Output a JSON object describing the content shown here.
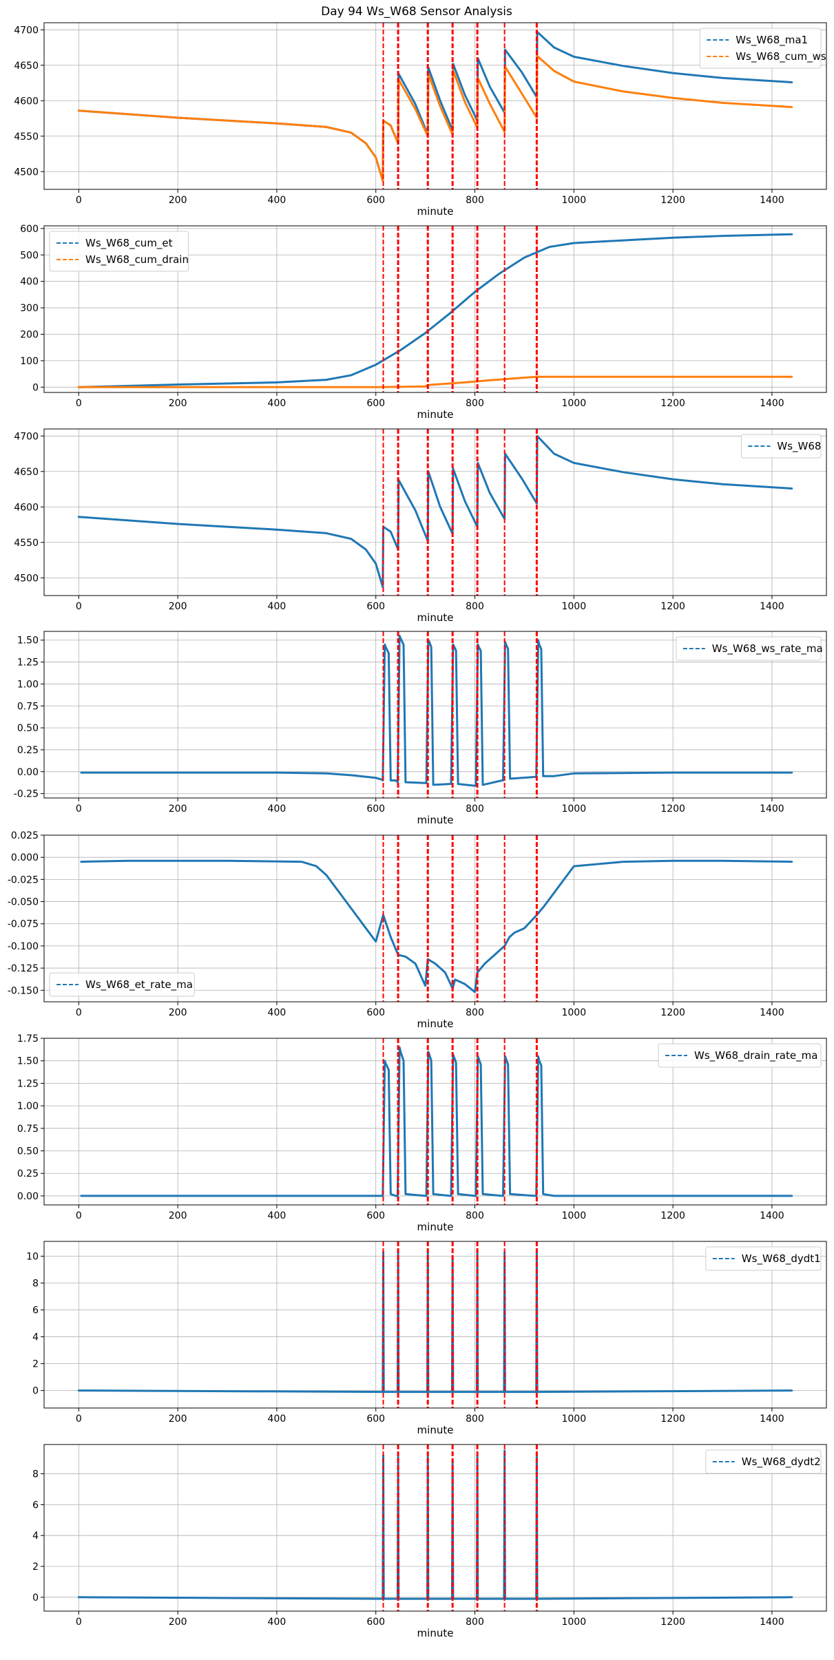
{
  "chart_data": {
    "title": "Day 94 Ws_W68 Sensor Analysis",
    "xlabel": "minute",
    "xlim": [
      -70,
      1510
    ],
    "xticks": [
      0,
      200,
      400,
      600,
      800,
      1000,
      1200,
      1400
    ],
    "colors": {
      "blue": "#1f77b4",
      "orange": "#ff7f0e",
      "event": "#ff0000",
      "grid": "#b0b0b0"
    },
    "event_lines": [
      {
        "minute": 615,
        "weight": "thin"
      },
      {
        "minute": 645,
        "weight": "thick"
      },
      {
        "minute": 705,
        "weight": "thick"
      },
      {
        "minute": 755,
        "weight": "thick"
      },
      {
        "minute": 805,
        "weight": "thick"
      },
      {
        "minute": 860,
        "weight": "thin"
      },
      {
        "minute": 925,
        "weight": "thick"
      }
    ],
    "panels": [
      {
        "type": "line",
        "ylim": [
          4475,
          4710
        ],
        "yticks": [
          4500,
          4550,
          4600,
          4650,
          4700
        ],
        "ytick_labels": [
          "4500",
          "4550",
          "4600",
          "4650",
          "4700"
        ],
        "legend": "top-right",
        "series": [
          {
            "name": "Ws_W68_ma1",
            "color": "blue",
            "x": [
              0,
              200,
              400,
              500,
              550,
              580,
              600,
              614,
              615,
              630,
              645,
              646,
              680,
              705,
              706,
              730,
              755,
              756,
              780,
              805,
              806,
              830,
              860,
              861,
              895,
              925,
              926,
              960,
              1000,
              1100,
              1200,
              1300,
              1440
            ],
            "y": [
              4586,
              4576,
              4568,
              4563,
              4555,
              4540,
              4520,
              4487,
              4572,
              4565,
              4540,
              4638,
              4595,
              4552,
              4647,
              4600,
              4558,
              4652,
              4608,
              4572,
              4660,
              4620,
              4583,
              4672,
              4640,
              4605,
              4697,
              4675,
              4662,
              4649,
              4639,
              4632,
              4626
            ]
          },
          {
            "name": "Ws_W68_cum_ws",
            "color": "orange",
            "x": [
              0,
              200,
              400,
              500,
              550,
              580,
              600,
              614,
              615,
              630,
              645,
              646,
              680,
              705,
              706,
              730,
              755,
              756,
              780,
              805,
              806,
              830,
              860,
              861,
              895,
              925,
              926,
              960,
              1000,
              1100,
              1200,
              1300,
              1440
            ],
            "y": [
              4586,
              4576,
              4568,
              4563,
              4555,
              4540,
              4520,
              4487,
              4572,
              4565,
              4540,
              4630,
              4588,
              4550,
              4638,
              4592,
              4552,
              4643,
              4598,
              4562,
              4632,
              4596,
              4556,
              4648,
              4610,
              4576,
              4663,
              4642,
              4627,
              4613,
              4604,
              4597,
              4591
            ]
          }
        ]
      },
      {
        "type": "line",
        "ylim": [
          -20,
          610
        ],
        "yticks": [
          0,
          100,
          200,
          300,
          400,
          500,
          600
        ],
        "ytick_labels": [
          "0",
          "100",
          "200",
          "300",
          "400",
          "500",
          "600"
        ],
        "legend": "top-left",
        "series": [
          {
            "name": "Ws_W68_cum_et",
            "color": "blue",
            "x": [
              0,
              200,
              400,
              500,
              550,
              600,
              650,
              700,
              750,
              800,
              850,
              900,
              950,
              1000,
              1100,
              1200,
              1300,
              1440
            ],
            "y": [
              0,
              10,
              18,
              28,
              45,
              85,
              140,
              205,
              280,
              360,
              430,
              490,
              530,
              545,
              555,
              565,
              572,
              578
            ]
          },
          {
            "name": "Ws_W68_cum_drain",
            "color": "orange",
            "x": [
              0,
              600,
              645,
              700,
              705,
              755,
              780,
              805,
              830,
              860,
              900,
              925,
              1000,
              1440
            ],
            "y": [
              0,
              0,
              1,
              3,
              8,
              15,
              18,
              22,
              26,
              30,
              36,
              39,
              39,
              39
            ]
          }
        ]
      },
      {
        "type": "line",
        "ylim": [
          4475,
          4710
        ],
        "yticks": [
          4500,
          4550,
          4600,
          4650,
          4700
        ],
        "ytick_labels": [
          "4500",
          "4550",
          "4600",
          "4650",
          "4700"
        ],
        "legend": "top-right",
        "series": [
          {
            "name": "Ws_W68",
            "color": "blue",
            "x": [
              0,
              200,
              400,
              500,
              550,
              580,
              600,
              614,
              615,
              630,
              645,
              646,
              680,
              705,
              706,
              730,
              755,
              756,
              780,
              805,
              806,
              830,
              860,
              861,
              895,
              925,
              926,
              960,
              1000,
              1100,
              1200,
              1300,
              1440
            ],
            "y": [
              4586,
              4576,
              4568,
              4563,
              4555,
              4540,
              4520,
              4487,
              4572,
              4565,
              4540,
              4638,
              4595,
              4552,
              4650,
              4600,
              4562,
              4654,
              4608,
              4572,
              4662,
              4620,
              4583,
              4675,
              4640,
              4605,
              4700,
              4675,
              4662,
              4649,
              4639,
              4632,
              4626
            ]
          }
        ]
      },
      {
        "type": "line",
        "ylim": [
          -0.3,
          1.6
        ],
        "yticks": [
          -0.25,
          0,
          0.25,
          0.5,
          0.75,
          1.0,
          1.25,
          1.5
        ],
        "ytick_labels": [
          "-0.25",
          "0.00",
          "0.25",
          "0.50",
          "0.75",
          "1.00",
          "1.25",
          "1.50"
        ],
        "legend": "top-right",
        "series": [
          {
            "name": "Ws_W68_ws_rate_ma",
            "color": "blue",
            "x": [
              5,
              400,
              500,
              550,
              600,
              612,
              614,
              618,
              620,
              626,
              630,
              640,
              644,
              648,
              650,
              656,
              660,
              700,
              702,
              706,
              708,
              712,
              716,
              750,
              752,
              756,
              758,
              762,
              766,
              800,
              802,
              806,
              808,
              812,
              816,
              855,
              857,
              861,
              863,
              867,
              871,
              922,
              924,
              928,
              930,
              934,
              938,
              960,
              1000,
              1200,
              1440
            ],
            "y": [
              -0.01,
              -0.01,
              -0.02,
              -0.04,
              -0.07,
              -0.09,
              -0.1,
              1.45,
              1.42,
              1.35,
              -0.1,
              -0.1,
              -0.12,
              1.55,
              1.52,
              1.45,
              -0.12,
              -0.13,
              -0.13,
              1.5,
              1.48,
              1.42,
              -0.15,
              -0.14,
              -0.14,
              1.45,
              1.43,
              1.38,
              -0.14,
              -0.16,
              -0.16,
              1.45,
              1.42,
              1.38,
              -0.15,
              -0.1,
              -0.1,
              1.48,
              1.45,
              1.4,
              -0.08,
              -0.06,
              -0.06,
              1.5,
              1.45,
              1.4,
              -0.05,
              -0.05,
              -0.02,
              -0.01,
              -0.01
            ]
          }
        ]
      },
      {
        "type": "line",
        "ylim": [
          -0.163,
          0.025
        ],
        "yticks": [
          -0.15,
          -0.125,
          -0.1,
          -0.075,
          -0.05,
          -0.025,
          0,
          0.025
        ],
        "ytick_labels": [
          "-0.150",
          "-0.125",
          "-0.100",
          "-0.075",
          "-0.050",
          "-0.025",
          "0.000",
          "0.025"
        ],
        "legend": "bottom-left",
        "series": [
          {
            "name": "Ws_W68_et_rate_ma",
            "color": "blue",
            "x": [
              5,
              100,
              200,
              300,
              450,
              480,
              500,
              520,
              540,
              560,
              580,
              600,
              615,
              630,
              645,
              660,
              680,
              700,
              705,
              720,
              740,
              755,
              760,
              780,
              800,
              805,
              820,
              840,
              860,
              870,
              880,
              900,
              925,
              940,
              960,
              980,
              1000,
              1100,
              1200,
              1300,
              1440
            ],
            "y": [
              -0.005,
              -0.004,
              -0.004,
              -0.004,
              -0.005,
              -0.01,
              -0.02,
              -0.035,
              -0.05,
              -0.065,
              -0.08,
              -0.095,
              -0.065,
              -0.09,
              -0.11,
              -0.112,
              -0.12,
              -0.145,
              -0.115,
              -0.12,
              -0.13,
              -0.148,
              -0.138,
              -0.143,
              -0.152,
              -0.13,
              -0.12,
              -0.11,
              -0.1,
              -0.09,
              -0.085,
              -0.08,
              -0.065,
              -0.055,
              -0.04,
              -0.025,
              -0.01,
              -0.005,
              -0.004,
              -0.004,
              -0.005
            ]
          }
        ]
      },
      {
        "type": "line",
        "ylim": [
          -0.1,
          1.75
        ],
        "yticks": [
          0,
          0.25,
          0.5,
          0.75,
          1.0,
          1.25,
          1.5,
          1.75
        ],
        "ytick_labels": [
          "0.00",
          "0.25",
          "0.50",
          "0.75",
          "1.00",
          "1.25",
          "1.50",
          "1.75"
        ],
        "legend": "top-right",
        "series": [
          {
            "name": "Ws_W68_drain_rate_ma",
            "color": "blue",
            "x": [
              5,
              612,
              614,
              618,
              620,
              626,
              630,
              640,
              644,
              648,
              650,
              656,
              660,
              700,
              702,
              706,
              708,
              712,
              716,
              750,
              752,
              756,
              758,
              762,
              766,
              800,
              802,
              806,
              808,
              812,
              816,
              855,
              857,
              861,
              863,
              867,
              871,
              922,
              924,
              928,
              930,
              934,
              938,
              960,
              1000,
              1440
            ],
            "y": [
              0,
              0,
              0,
              1.5,
              1.47,
              1.4,
              0.02,
              0,
              0,
              1.65,
              1.6,
              1.5,
              0.02,
              0,
              0,
              1.6,
              1.57,
              1.5,
              0.02,
              0,
              0,
              1.57,
              1.54,
              1.48,
              0.02,
              0,
              0,
              1.55,
              1.52,
              1.46,
              0.02,
              0,
              0,
              1.55,
              1.52,
              1.46,
              0.02,
              0,
              0,
              1.55,
              1.5,
              1.45,
              0.02,
              0,
              0,
              0
            ]
          }
        ]
      },
      {
        "type": "line",
        "ylim": [
          -1.3,
          11.1
        ],
        "yticks": [
          0,
          2,
          4,
          6,
          8,
          10
        ],
        "ytick_labels": [
          "0",
          "2",
          "4",
          "6",
          "8",
          "10"
        ],
        "legend": "top-right",
        "series": [
          {
            "name": "Ws_W68_dydt1",
            "color": "blue",
            "x": [
              0,
              614,
              615,
              616,
              644,
              645,
              646,
              704,
              705,
              706,
              754,
              755,
              756,
              804,
              805,
              806,
              859,
              860,
              861,
              924,
              925,
              926,
              1440
            ],
            "y": [
              0,
              -0.1,
              10.3,
              -0.1,
              -0.1,
              10.3,
              -0.1,
              -0.1,
              10.2,
              -0.1,
              -0.1,
              9.8,
              -0.1,
              -0.1,
              10.4,
              -0.1,
              -0.1,
              10.3,
              -0.1,
              -0.1,
              10.4,
              -0.1,
              0
            ]
          }
        ]
      },
      {
        "type": "line",
        "ylim": [
          -0.9,
          9.9
        ],
        "yticks": [
          0,
          2,
          4,
          6,
          8
        ],
        "ytick_labels": [
          "0",
          "2",
          "4",
          "6",
          "8"
        ],
        "legend": "top-right",
        "series": [
          {
            "name": "Ws_W68_dydt2",
            "color": "blue",
            "x": [
              0,
              614,
              615,
              616,
              644,
              645,
              646,
              704,
              705,
              706,
              754,
              755,
              756,
              804,
              805,
              806,
              859,
              860,
              861,
              924,
              925,
              926,
              1440
            ],
            "y": [
              0,
              -0.1,
              9.2,
              -0.1,
              -0.1,
              9.1,
              -0.1,
              -0.1,
              9.1,
              -0.1,
              -0.1,
              8.9,
              -0.1,
              -0.1,
              9.2,
              -0.1,
              -0.1,
              9.5,
              -0.1,
              -0.1,
              9.2,
              -0.1,
              0
            ]
          }
        ]
      }
    ]
  }
}
